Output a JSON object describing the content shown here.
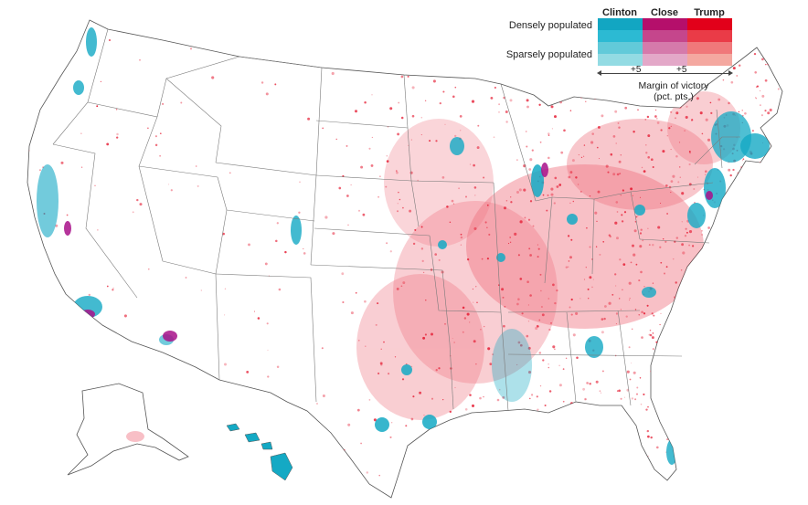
{
  "legend": {
    "columns": [
      "Clinton",
      "Close",
      "Trump"
    ],
    "rows": [
      "Densely populated",
      "Sparsely populated"
    ],
    "tick_left": "+5",
    "tick_right": "+5",
    "caption_line1": "Margin of victory",
    "caption_line2": "(pct. pts.)",
    "colors": {
      "clinton": [
        "#12a6c2",
        "#2cbad3",
        "#62cad9",
        "#93dbe3"
      ],
      "close": [
        "#b50f6b",
        "#c5468c",
        "#d57aab",
        "#e3a8c8"
      ],
      "trump": [
        "#e2001a",
        "#ea3b47",
        "#f0787a",
        "#f4a8a0"
      ]
    }
  },
  "map": {
    "land_color": "#ffffff",
    "border_color": "#7a7a7a",
    "republican_color": "#e2001a",
    "democrat_color": "#14a9c4",
    "close_color": "#a8108a"
  }
}
